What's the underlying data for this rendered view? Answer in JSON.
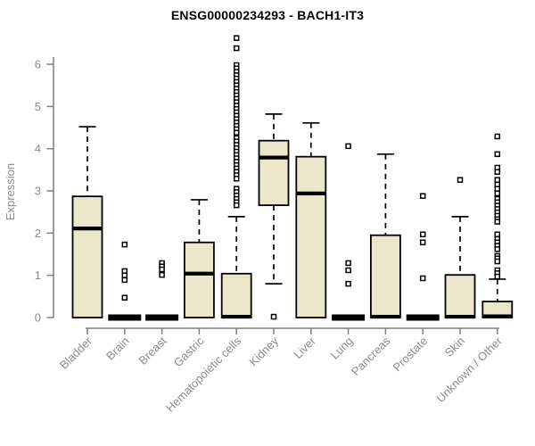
{
  "chart_data": {
    "type": "boxplot",
    "title": "ENSG00000234293 - BACH1-IT3",
    "ylabel": "Expression",
    "xlabel": "",
    "ylim": [
      0,
      6.7
    ],
    "yticks": [
      0,
      1,
      2,
      3,
      4,
      5,
      6
    ],
    "grid": false,
    "legend": "none",
    "marker_style": "open-square",
    "colors": {
      "box_fill": "#ECE6CB",
      "box_border": "#000000",
      "median": "#000000",
      "whisker": "#000000",
      "axis": "#7f7f7f",
      "tick_label": "#8b8b8b",
      "title": "#000000",
      "background": "#ffffff"
    },
    "categories": [
      "Bladder",
      "Brain",
      "Breast",
      "Gastric",
      "Hematopoietic cells",
      "Kidney",
      "Liver",
      "Lung",
      "Pancreas",
      "Prostate",
      "Skin",
      "Unknown / Other"
    ],
    "boxes": [
      {
        "category": "Bladder",
        "low": 0,
        "q1": 0,
        "median": 2.11,
        "q3": 2.87,
        "high": 4.52,
        "outliers": []
      },
      {
        "category": "Brain",
        "low": 0,
        "q1": 0,
        "median": 0,
        "q3": 0,
        "high": 0,
        "outliers": [
          1.73,
          1.1,
          1.0,
          0.89,
          0.47
        ]
      },
      {
        "category": "Breast",
        "low": 0,
        "q1": 0,
        "median": 0,
        "q3": 0,
        "high": 0,
        "outliers": [
          1.29,
          1.21,
          1.14,
          1.01
        ]
      },
      {
        "category": "Gastric",
        "low": 0,
        "q1": 0,
        "median": 1.04,
        "q3": 1.78,
        "high": 2.79,
        "outliers": []
      },
      {
        "category": "Hematopoietic cells",
        "low": 0,
        "q1": 0,
        "median": 0.02,
        "q3": 1.04,
        "high": 2.39,
        "outliers": [
          6.62,
          6.38,
          5.98,
          5.9,
          5.82,
          5.74,
          5.66,
          5.58,
          5.5,
          5.42,
          5.34,
          5.26,
          5.18,
          5.1,
          5.02,
          4.94,
          4.86,
          4.78,
          4.7,
          4.62,
          4.54,
          4.46,
          4.38,
          4.25,
          4.17,
          4.09,
          4.01,
          3.93,
          3.85,
          3.77,
          3.69,
          3.61,
          3.53,
          3.45,
          3.37,
          3.29,
          3.05,
          2.97,
          2.89,
          2.81,
          2.73,
          2.66
        ]
      },
      {
        "category": "Kidney",
        "low": 0.8,
        "q1": 2.66,
        "median": 3.79,
        "q3": 4.19,
        "high": 4.82,
        "outliers": [
          0.02
        ]
      },
      {
        "category": "Liver",
        "low": 0,
        "q1": 0,
        "median": 2.94,
        "q3": 3.81,
        "high": 4.61,
        "outliers": []
      },
      {
        "category": "Lung",
        "low": 0,
        "q1": 0,
        "median": 0,
        "q3": 0,
        "high": 0,
        "outliers": [
          4.06,
          1.29,
          1.12,
          0.8
        ]
      },
      {
        "category": "Pancreas",
        "low": 0,
        "q1": 0,
        "median": 0.02,
        "q3": 1.95,
        "high": 3.87,
        "outliers": []
      },
      {
        "category": "Prostate",
        "low": 0,
        "q1": 0,
        "median": 0,
        "q3": 0,
        "high": 0,
        "outliers": [
          2.88,
          1.97,
          1.78,
          0.93
        ]
      },
      {
        "category": "Skin",
        "low": 0,
        "q1": 0,
        "median": 0.02,
        "q3": 1.01,
        "high": 2.39,
        "outliers": [
          3.26
        ]
      },
      {
        "category": "Unknown / Other",
        "low": 0,
        "q1": 0,
        "median": 0.03,
        "q3": 0.38,
        "high": 0.91,
        "outliers": [
          4.29,
          3.87,
          3.55,
          3.45,
          3.26,
          3.15,
          3.05,
          2.94,
          2.81,
          2.73,
          2.65,
          2.57,
          2.49,
          2.41,
          2.33,
          2.27,
          1.97,
          1.86,
          1.78,
          1.7,
          1.62,
          1.46,
          1.4,
          1.33,
          1.12,
          1.05,
          0.97
        ]
      }
    ]
  }
}
